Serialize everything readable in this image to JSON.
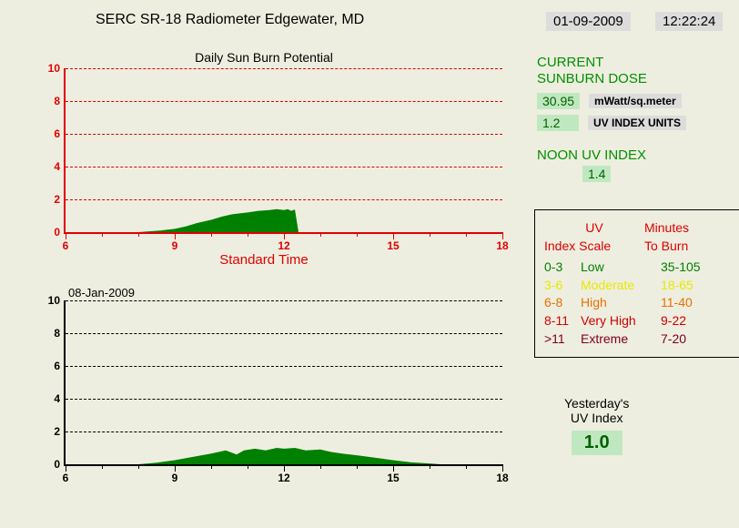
{
  "header": {
    "title": "SERC SR-18 Radiometer    Edgewater, MD",
    "date": "01-09-2009",
    "time": "12:22:24"
  },
  "chart1": {
    "title": "Daily Sun Burn Potential",
    "type": "area",
    "xlim": [
      6,
      18
    ],
    "ylim": [
      0,
      10
    ],
    "yticks": [
      0,
      2,
      4,
      6,
      8,
      10
    ],
    "xticks_major": [
      6,
      9,
      12,
      15,
      18
    ],
    "xticks_minor_step": 1,
    "axis_color": "#e00000",
    "grid_color": "#e00000",
    "fill_color": "#008000",
    "x_axis_label": "Standard Time",
    "data": [
      [
        8.0,
        0.0
      ],
      [
        8.3,
        0.05
      ],
      [
        8.6,
        0.1
      ],
      [
        9.0,
        0.2
      ],
      [
        9.3,
        0.35
      ],
      [
        9.6,
        0.55
      ],
      [
        10.0,
        0.75
      ],
      [
        10.3,
        0.95
      ],
      [
        10.6,
        1.1
      ],
      [
        11.0,
        1.2
      ],
      [
        11.3,
        1.3
      ],
      [
        11.6,
        1.35
      ],
      [
        11.8,
        1.4
      ],
      [
        12.0,
        1.35
      ],
      [
        12.1,
        1.4
      ],
      [
        12.2,
        1.3
      ],
      [
        12.3,
        1.38
      ],
      [
        12.4,
        0.0
      ]
    ]
  },
  "chart2": {
    "date_label": "08-Jan-2009",
    "type": "area",
    "xlim": [
      6,
      18
    ],
    "ylim": [
      0,
      10
    ],
    "yticks": [
      0,
      2,
      4,
      6,
      8,
      10
    ],
    "xticks_major": [
      6,
      9,
      12,
      15,
      18
    ],
    "xticks_minor_step": 1,
    "axis_color": "#000000",
    "grid_color": "#000000",
    "fill_color": "#008000",
    "data": [
      [
        8.0,
        0.0
      ],
      [
        8.5,
        0.1
      ],
      [
        9.0,
        0.25
      ],
      [
        9.5,
        0.45
      ],
      [
        10.0,
        0.65
      ],
      [
        10.4,
        0.85
      ],
      [
        10.7,
        0.6
      ],
      [
        10.9,
        0.85
      ],
      [
        11.2,
        0.95
      ],
      [
        11.5,
        0.85
      ],
      [
        11.8,
        1.0
      ],
      [
        12.0,
        0.95
      ],
      [
        12.3,
        1.0
      ],
      [
        12.6,
        0.85
      ],
      [
        13.0,
        0.9
      ],
      [
        13.3,
        0.75
      ],
      [
        13.6,
        0.65
      ],
      [
        14.0,
        0.55
      ],
      [
        14.5,
        0.4
      ],
      [
        15.0,
        0.25
      ],
      [
        15.5,
        0.12
      ],
      [
        16.0,
        0.05
      ],
      [
        16.3,
        0.0
      ]
    ]
  },
  "current": {
    "title1": "CURRENT",
    "title2": "SUNBURN DOSE",
    "dose_value": "30.95",
    "dose_unit": "mWatt/sq.meter",
    "index_value": "1.2",
    "index_unit": "UV INDEX UNITS",
    "noon_title": "NOON UV INDEX",
    "noon_value": "1.4"
  },
  "scale": {
    "header_left1": "UV",
    "header_left2": "Index Scale",
    "header_right1": "Minutes",
    "header_right2": "To Burn",
    "rows": [
      {
        "range": "0-3",
        "label": "Low",
        "minutes": "35-105",
        "color": "#008000"
      },
      {
        "range": "3-6",
        "label": "Moderate",
        "minutes": "18-65",
        "color": "#e8e800"
      },
      {
        "range": "6-8",
        "label": "High",
        "minutes": "11-40",
        "color": "#e87000"
      },
      {
        "range": "8-11",
        "label": "Very High",
        "minutes": " 9-22",
        "color": "#d00000"
      },
      {
        "range": ">11",
        "label": "Extreme",
        "minutes": " 7-20",
        "color": "#800020"
      }
    ]
  },
  "yesterday": {
    "line1": "Yesterday's",
    "line2": "UV Index",
    "value": "1.0"
  }
}
